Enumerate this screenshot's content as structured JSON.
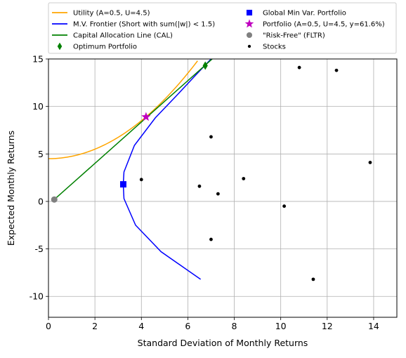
{
  "chart_data": {
    "type": "line",
    "xlabel": "Standard Deviation of Monthly Returns",
    "ylabel": "Expected Monthly Returns",
    "xlim": [
      0,
      15
    ],
    "ylim": [
      -12.2,
      15
    ],
    "xticks": [
      0,
      2,
      4,
      6,
      8,
      10,
      12,
      14
    ],
    "yticks": [
      -10,
      -5,
      0,
      5,
      10,
      15
    ],
    "grid": true,
    "legend_position": "top, two columns",
    "legend": [
      {
        "key": "utility",
        "label": "Utility (A=0.5, U=4.5)",
        "marker": "line",
        "color": "#ffa500"
      },
      {
        "key": "gmv",
        "label": "Global Min Var. Portfolio",
        "marker": "square",
        "color": "#0000ff"
      },
      {
        "key": "frontier",
        "label": "M.V. Frontier (Short with sum(|w|) < 1.5)",
        "marker": "line",
        "color": "#0000ff"
      },
      {
        "key": "portfolio",
        "label": "Portfolio (A=0.5, U=4.5, y=61.6%)",
        "marker": "star",
        "color": "#bf00bf"
      },
      {
        "key": "cal",
        "label": "Capital Allocation Line (CAL)",
        "marker": "line",
        "color": "#008000"
      },
      {
        "key": "rf",
        "label": "\"Risk-Free\" (FLTR)",
        "marker": "circle",
        "color": "#808080"
      },
      {
        "key": "optimum",
        "label": "Optimum Portfolio",
        "marker": "diamond",
        "color": "#008000"
      },
      {
        "key": "stocks",
        "label": "Stocks",
        "marker": "dot",
        "color": "#000000"
      }
    ],
    "series": [
      {
        "name": "Utility (A=0.5, U=4.5)",
        "kind": "utility",
        "A": 0.5,
        "U": 4.5,
        "x_range": [
          0,
          6.42
        ],
        "color": "#ffa500"
      },
      {
        "name": "M.V. Frontier (Short with sum(|w|) < 1.5)",
        "color": "#0000ff",
        "points": [
          [
            6.55,
            -8.2
          ],
          [
            4.85,
            -5.3
          ],
          [
            3.75,
            -2.5
          ],
          [
            3.25,
            0.3
          ],
          [
            3.22,
            1.8
          ],
          [
            3.25,
            3.1
          ],
          [
            3.7,
            5.9
          ],
          [
            4.6,
            8.8
          ],
          [
            5.5,
            11.1
          ],
          [
            6.3,
            13.2
          ],
          [
            7.0,
            15.0
          ]
        ]
      },
      {
        "name": "Capital Allocation Line (CAL)",
        "color": "#008000",
        "points": [
          [
            0.25,
            0.2
          ],
          [
            7.05,
            15.0
          ]
        ]
      }
    ],
    "points": {
      "optimum": [
        6.75,
        14.3
      ],
      "gmv": [
        3.22,
        1.8
      ],
      "portfolio": [
        4.2,
        8.9
      ],
      "risk_free": [
        0.25,
        0.2
      ],
      "stocks": [
        [
          4.0,
          2.3
        ],
        [
          6.5,
          1.6
        ],
        [
          7.0,
          6.8
        ],
        [
          7.3,
          0.8
        ],
        [
          7.0,
          -4.0
        ],
        [
          8.4,
          2.4
        ],
        [
          10.15,
          -0.5
        ],
        [
          10.8,
          14.1
        ],
        [
          12.4,
          13.8
        ],
        [
          11.4,
          -8.2
        ],
        [
          13.85,
          4.1
        ]
      ]
    }
  }
}
